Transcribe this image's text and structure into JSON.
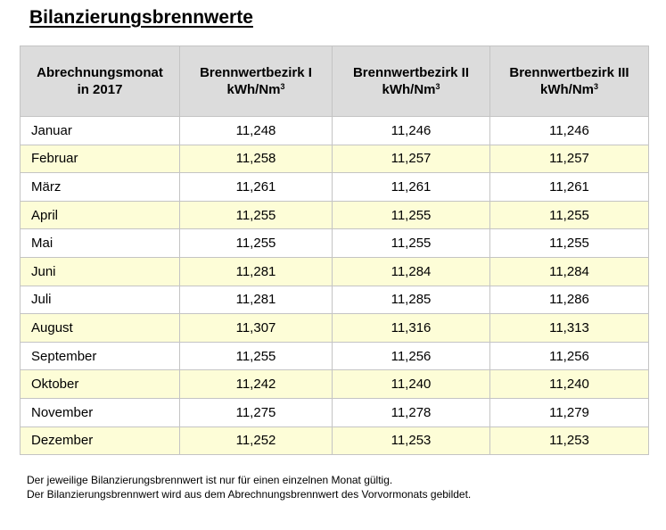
{
  "title": "Bilanzierungsbrennwerte",
  "table": {
    "headers": [
      {
        "line1": "Abrechnungsmonat",
        "line2": "in 2017",
        "sup": ""
      },
      {
        "line1": "Brennwertbezirk I",
        "line2": "kWh/Nm",
        "sup": "3"
      },
      {
        "line1": "Brennwertbezirk II",
        "line2": "kWh/Nm",
        "sup": "3"
      },
      {
        "line1": "Brennwertbezirk III",
        "line2": "kWh/Nm",
        "sup": "3"
      }
    ],
    "rows": [
      {
        "month": "Januar",
        "b1": "11,248",
        "b2": "11,246",
        "b3": "11,246"
      },
      {
        "month": "Februar",
        "b1": "11,258",
        "b2": "11,257",
        "b3": "11,257"
      },
      {
        "month": "März",
        "b1": "11,261",
        "b2": "11,261",
        "b3": "11,261"
      },
      {
        "month": "April",
        "b1": "11,255",
        "b2": "11,255",
        "b3": "11,255"
      },
      {
        "month": "Mai",
        "b1": "11,255",
        "b2": "11,255",
        "b3": "11,255"
      },
      {
        "month": "Juni",
        "b1": "11,281",
        "b2": "11,284",
        "b3": "11,284"
      },
      {
        "month": "Juli",
        "b1": "11,281",
        "b2": "11,285",
        "b3": "11,286"
      },
      {
        "month": "August",
        "b1": "11,307",
        "b2": "11,316",
        "b3": "11,313"
      },
      {
        "month": "September",
        "b1": "11,255",
        "b2": "11,256",
        "b3": "11,256"
      },
      {
        "month": "Oktober",
        "b1": "11,242",
        "b2": "11,240",
        "b3": "11,240"
      },
      {
        "month": "November",
        "b1": "11,275",
        "b2": "11,278",
        "b3": "11,279"
      },
      {
        "month": "Dezember",
        "b1": "11,252",
        "b2": "11,253",
        "b3": "11,253"
      }
    ]
  },
  "notes": [
    "Der jeweilige Bilanzierungsbrennwert ist nur für einen einzelnen Monat gültig.",
    "Der Bilanzierungsbrennwert wird aus dem Abrechnungsbrennwert des Vorvormonats gebildet."
  ],
  "colors": {
    "header_bg": "#dcdcdc",
    "stripe_bg": "#fdfdd7",
    "grid": "#c4c4c4"
  }
}
